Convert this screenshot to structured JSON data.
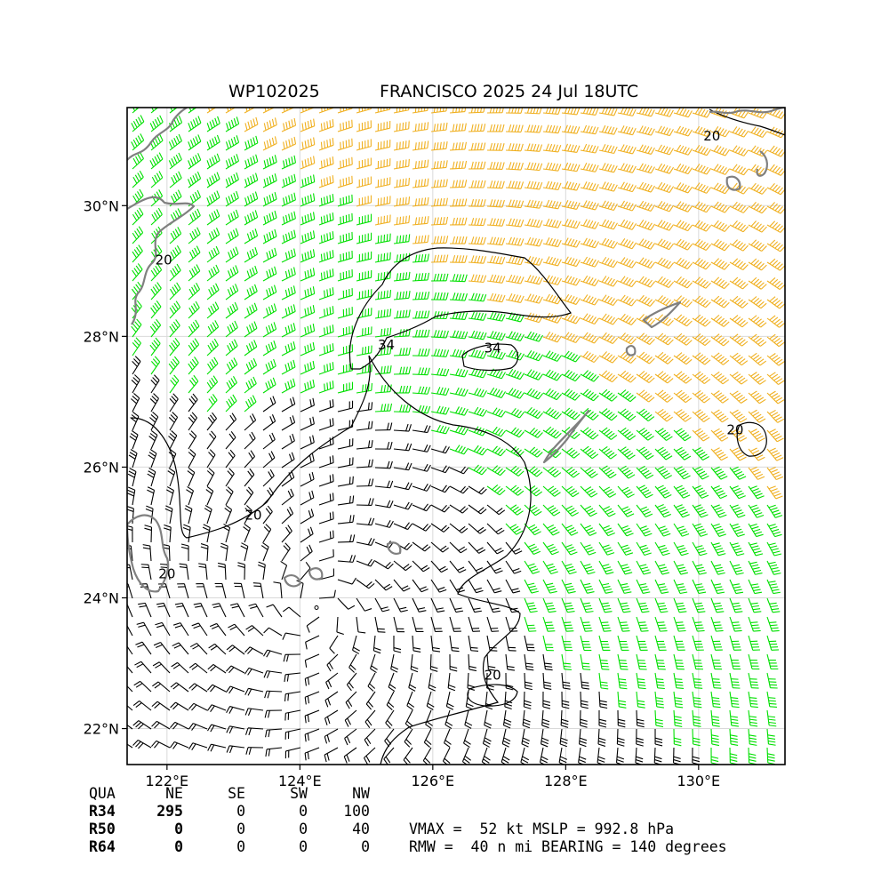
{
  "title": {
    "storm_id": "WP102025",
    "storm_info": "FRANCISCO 2025 24 Jul 18UTC"
  },
  "map": {
    "lon_range": [
      121.4,
      131.3
    ],
    "lat_range": [
      21.45,
      31.5
    ],
    "x_ticks": [
      {
        "value": 122,
        "label": "122°E"
      },
      {
        "value": 124,
        "label": "124°E"
      },
      {
        "value": 126,
        "label": "126°E"
      },
      {
        "value": 128,
        "label": "128°E"
      },
      {
        "value": 130,
        "label": "130°E"
      }
    ],
    "y_ticks": [
      {
        "value": 22,
        "label": "22°N"
      },
      {
        "value": 24,
        "label": "24°N"
      },
      {
        "value": 26,
        "label": "26°N"
      },
      {
        "value": 28,
        "label": "28°N"
      },
      {
        "value": 30,
        "label": "30°N"
      }
    ],
    "grid": true,
    "colors": {
      "below_34kt": "#000000",
      "gale_34_50kt": "#00e000",
      "storm_50_64kt": "#f0b020",
      "coastline": "#808080",
      "grid": "#d9d9d9"
    },
    "contour_labels": [
      {
        "text": "34",
        "lon": 125.3,
        "lat": 27.8
      },
      {
        "text": "34",
        "lon": 126.9,
        "lat": 27.75
      },
      {
        "text": "20",
        "lon": 123.3,
        "lat": 25.2
      },
      {
        "text": "20",
        "lon": 126.9,
        "lat": 22.75
      },
      {
        "text": "20",
        "lon": 130.55,
        "lat": 26.5
      },
      {
        "text": "20",
        "lon": 130.2,
        "lat": 31.0
      },
      {
        "text": "20",
        "lon": 121.95,
        "lat": 29.1
      },
      {
        "text": "20",
        "lon": 122.0,
        "lat": 24.3
      }
    ],
    "storm_center": {
      "lon": 124.25,
      "lat": 23.85
    }
  },
  "wind_radii": {
    "header": [
      "QUA",
      "NE",
      "SE",
      "SW",
      "NW"
    ],
    "rows": [
      {
        "label": "R34",
        "values": [
          "295",
          "0",
          "0",
          "100"
        ]
      },
      {
        "label": "R50",
        "values": [
          "0",
          "0",
          "0",
          "40"
        ]
      },
      {
        "label": "R64",
        "values": [
          "0",
          "0",
          "0",
          "0"
        ]
      }
    ]
  },
  "summary": {
    "line1": "VMAX =  52 kt MSLP = 992.8 hPa",
    "line2": "RMW =  40 n mi BEARING = 140 degrees"
  }
}
